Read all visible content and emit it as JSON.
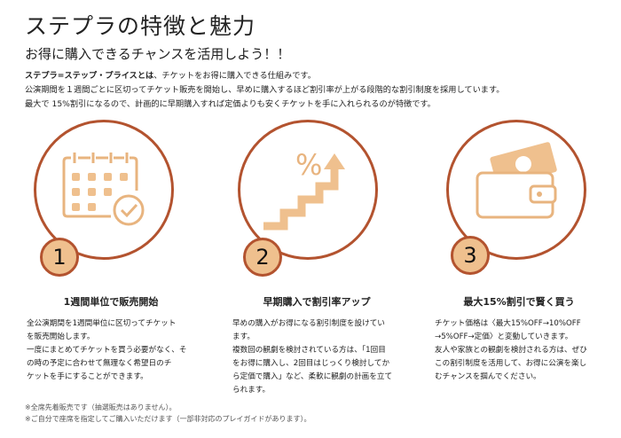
{
  "header": {
    "title": "ステプラの特徴と魅力",
    "subtitle": "お得に購入できるチャンスを活用しよう！！"
  },
  "intro": {
    "bold": "ステプラ=ステップ・プライスとは",
    "line1_rest": "、チケットをお得に購入できる仕組みです。",
    "line2": "公演期間を１週間ごとに区切ってチケット販売を開始し、早めに購入するほど割引率が上がる段階的な割引制度を採用しています。",
    "line3": "最大で 15%割引になるので、計画的に早期購入すれば定価よりも安くチケットを手に入れられるのが特徴です。"
  },
  "colors": {
    "accent": "#b3532f",
    "badge": "#efc08e",
    "icon": "#e8b47f"
  },
  "features": [
    {
      "number": "1",
      "icon": "calendar-check-icon",
      "title": "1週間単位で販売開始",
      "lines": [
        "全公演期間を1週間単位に区切ってチケット",
        "を販売開始します。",
        "一度にまとめてチケットを買う必要がなく、そ",
        "の時の予定に合わせて無理なく希望日のチ",
        "ケットを手にすることができます。"
      ]
    },
    {
      "number": "2",
      "icon": "percent-stairs-icon",
      "title": "早期購入で割引率アップ",
      "lines": [
        "早めの購入がお得になる割引制度を設けてい",
        "ます。",
        "複数回の観劇を検討されている方は、「1回目",
        "をお得に購入し、2回目はじっくり検討してか",
        "ら定価で購入」など、柔軟に観劇の計画を立て",
        "られます。"
      ]
    },
    {
      "number": "3",
      "icon": "wallet-money-icon",
      "title": "最大15%割引で賢く買う",
      "lines": [
        "チケット価格は〈最大15%OFF→10%OFF",
        "→5%OFF→定価〉と変動していきます。",
        "友人や家族との観劇を検討される方は、ぜひ",
        "この割引制度を活用して、お得に公演を楽し",
        "むチャンスを掴んでください。"
      ]
    }
  ],
  "footnotes": [
    "※全席先着販売です（抽選販売はありません）。",
    "※ご自分で座席を指定してご購入いただけます（一部非対応のプレイガイドがあります）。"
  ]
}
